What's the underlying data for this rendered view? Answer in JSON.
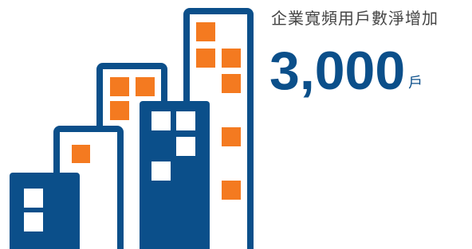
{
  "headline": {
    "label": "企業寬頻用戶數淨增加",
    "value": "3,000",
    "unit": "戶"
  }
}
